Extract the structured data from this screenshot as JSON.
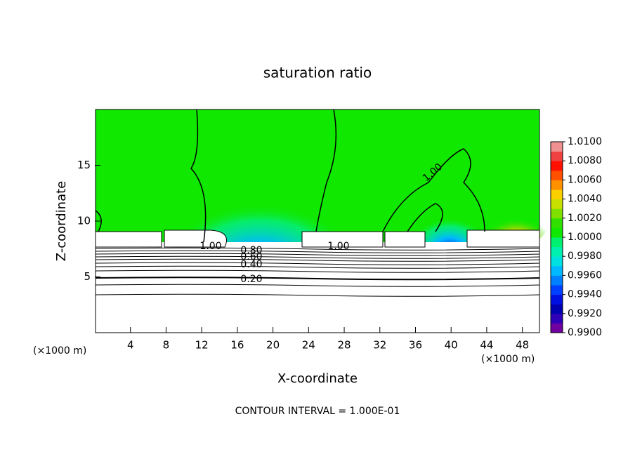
{
  "chart_data": {
    "type": "contour",
    "title": "saturation ratio",
    "x_label": "X-coordinate",
    "y_label": "Z-coordinate",
    "x_unit": "(×1000 m)",
    "y_unit": "(×1000 m)",
    "xlim": [
      0,
      50
    ],
    "ylim": [
      0,
      20
    ],
    "xticks": [
      4,
      8,
      12,
      16,
      20,
      24,
      28,
      32,
      36,
      40,
      44,
      48
    ],
    "yticks": [
      5,
      10,
      15
    ],
    "contour_labels": [
      "1.00",
      "1.00",
      "1.00",
      "0.80",
      "0.60",
      "0.40",
      "0.20"
    ],
    "contour_interval": "CONTOUR INTERVAL = 1.000E-01",
    "colorbar": {
      "lim": [
        0.99,
        1.01
      ],
      "ticks": [
        {
          "value": 0.99,
          "label": "0.9900"
        },
        {
          "value": 0.992,
          "label": "0.9920"
        },
        {
          "value": 0.994,
          "label": "0.9940"
        },
        {
          "value": 0.996,
          "label": "0.9960"
        },
        {
          "value": 0.998,
          "label": "0.9980"
        },
        {
          "value": 1.0,
          "label": "1.0000"
        },
        {
          "value": 1.002,
          "label": "1.0020"
        },
        {
          "value": 1.004,
          "label": "1.0040"
        },
        {
          "value": 1.006,
          "label": "1.0060"
        },
        {
          "value": 1.008,
          "label": "1.0080"
        },
        {
          "value": 1.01,
          "label": "1.0100"
        }
      ],
      "colors": [
        "#7000a0",
        "#3000b8",
        "#0000b0",
        "#0010e0",
        "#0040ff",
        "#0080ff",
        "#00b8ff",
        "#00e0e0",
        "#00f0b0",
        "#00f070",
        "#10e800",
        "#30e000",
        "#80e000",
        "#c8e000",
        "#ffd000",
        "#ff9000",
        "#ff5000",
        "#ff1000",
        "#f04040",
        "#f09090"
      ]
    }
  }
}
